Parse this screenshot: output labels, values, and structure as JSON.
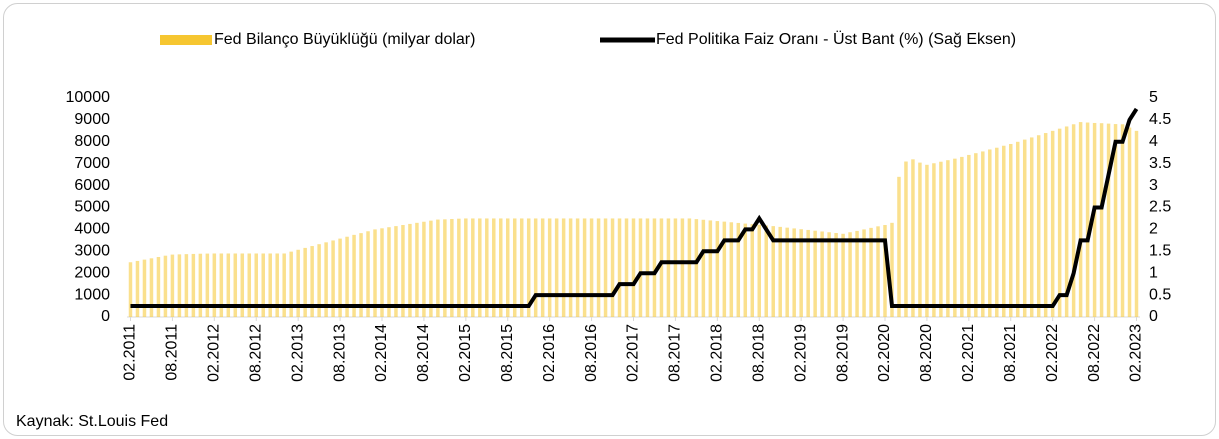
{
  "chart_data": {
    "type": "bar",
    "legend_position": "top",
    "source": "Kaynak: St.Louis Fed",
    "categories": [
      "02.2011",
      null,
      null,
      null,
      null,
      null,
      "08.2011",
      null,
      null,
      null,
      null,
      null,
      "02.2012",
      null,
      null,
      null,
      null,
      null,
      "08.2012",
      null,
      null,
      null,
      null,
      null,
      "02.2013",
      null,
      null,
      null,
      null,
      null,
      "08.2013",
      null,
      null,
      null,
      null,
      null,
      "02.2014",
      null,
      null,
      null,
      null,
      null,
      "08.2014",
      null,
      null,
      null,
      null,
      null,
      "02.2015",
      null,
      null,
      null,
      null,
      null,
      "08.2015",
      null,
      null,
      null,
      null,
      null,
      "02.2016",
      null,
      null,
      null,
      null,
      null,
      "08.2016",
      null,
      null,
      null,
      null,
      null,
      "02.2017",
      null,
      null,
      null,
      null,
      null,
      "08.2017",
      null,
      null,
      null,
      null,
      null,
      "02.2018",
      null,
      null,
      null,
      null,
      null,
      "08.2018",
      null,
      null,
      null,
      null,
      null,
      "02.2019",
      null,
      null,
      null,
      null,
      null,
      "08.2019",
      null,
      null,
      null,
      null,
      null,
      "02.2020",
      null,
      null,
      null,
      null,
      null,
      "08.2020",
      null,
      null,
      null,
      null,
      null,
      "02.2021",
      null,
      null,
      null,
      null,
      null,
      "08.2021",
      null,
      null,
      null,
      null,
      null,
      "02.2022",
      null,
      null,
      null,
      null,
      null,
      "08.2022",
      null,
      null,
      null,
      null,
      null,
      "02.2023"
    ],
    "series": [
      {
        "name": "Fed Bilanço Büyüklüğü (milyar dolar)",
        "type": "bar",
        "color": "#f6c630",
        "values": [
          2500,
          2560,
          2620,
          2680,
          2740,
          2800,
          2850,
          2860,
          2870,
          2880,
          2890,
          2895,
          2900,
          2900,
          2900,
          2900,
          2900,
          2900,
          2900,
          2900,
          2900,
          2900,
          2900,
          2985,
          3070,
          3155,
          3240,
          3325,
          3410,
          3495,
          3580,
          3665,
          3750,
          3830,
          3915,
          4000,
          4050,
          4100,
          4150,
          4200,
          4250,
          4300,
          4350,
          4400,
          4450,
          4460,
          4475,
          4490,
          4500,
          4500,
          4500,
          4500,
          4500,
          4500,
          4500,
          4500,
          4500,
          4500,
          4500,
          4500,
          4500,
          4500,
          4500,
          4500,
          4500,
          4500,
          4500,
          4500,
          4500,
          4500,
          4500,
          4500,
          4500,
          4500,
          4500,
          4500,
          4500,
          4500,
          4500,
          4500,
          4500,
          4470,
          4440,
          4410,
          4380,
          4355,
          4325,
          4295,
          4265,
          4240,
          4210,
          4180,
          4150,
          4115,
          4080,
          4045,
          4010,
          3975,
          3940,
          3905,
          3870,
          3835,
          3800,
          3870,
          3930,
          4000,
          4070,
          4140,
          4200,
          4300,
          6400,
          7100,
          7200,
          7050,
          6950,
          7020,
          7090,
          7160,
          7230,
          7310,
          7400,
          7480,
          7560,
          7650,
          7730,
          7820,
          7900,
          8000,
          8100,
          8200,
          8300,
          8400,
          8500,
          8600,
          8700,
          8800,
          8900,
          8880,
          8860,
          8850,
          8830,
          8810,
          8800,
          8650,
          8500
        ]
      },
      {
        "name": "Fed Politika Faiz Oranı - Üst Bant (%) (Sağ Eksen)",
        "type": "line",
        "axis": "y2",
        "color": "#000000",
        "values": [
          0.25,
          0.25,
          0.25,
          0.25,
          0.25,
          0.25,
          0.25,
          0.25,
          0.25,
          0.25,
          0.25,
          0.25,
          0.25,
          0.25,
          0.25,
          0.25,
          0.25,
          0.25,
          0.25,
          0.25,
          0.25,
          0.25,
          0.25,
          0.25,
          0.25,
          0.25,
          0.25,
          0.25,
          0.25,
          0.25,
          0.25,
          0.25,
          0.25,
          0.25,
          0.25,
          0.25,
          0.25,
          0.25,
          0.25,
          0.25,
          0.25,
          0.25,
          0.25,
          0.25,
          0.25,
          0.25,
          0.25,
          0.25,
          0.25,
          0.25,
          0.25,
          0.25,
          0.25,
          0.25,
          0.25,
          0.25,
          0.25,
          0.25,
          0.5,
          0.5,
          0.5,
          0.5,
          0.5,
          0.5,
          0.5,
          0.5,
          0.5,
          0.5,
          0.5,
          0.5,
          0.75,
          0.75,
          0.75,
          1,
          1,
          1,
          1.25,
          1.25,
          1.25,
          1.25,
          1.25,
          1.25,
          1.5,
          1.5,
          1.5,
          1.75,
          1.75,
          1.75,
          2,
          2,
          2.25,
          2,
          1.75,
          1.75,
          1.75,
          1.75,
          1.75,
          1.75,
          1.75,
          1.75,
          1.75,
          1.75,
          1.75,
          1.75,
          1.75,
          1.75,
          1.75,
          1.75,
          1.75,
          0.25,
          0.25,
          0.25,
          0.25,
          0.25,
          0.25,
          0.25,
          0.25,
          0.25,
          0.25,
          0.25,
          0.25,
          0.25,
          0.25,
          0.25,
          0.25,
          0.25,
          0.25,
          0.25,
          0.25,
          0.25,
          0.25,
          0.25,
          0.25,
          0.5,
          0.5,
          1,
          1.75,
          1.75,
          2.5,
          2.5,
          3.25,
          4,
          4,
          4.5,
          4.75
        ]
      }
    ],
    "ylim": [
      0,
      10000
    ],
    "yticks": [
      0,
      1000,
      2000,
      3000,
      4000,
      5000,
      6000,
      7000,
      8000,
      9000,
      10000
    ],
    "y2lim": [
      0,
      5
    ],
    "y2ticks": [
      0,
      0.5,
      1,
      1.5,
      2,
      2.5,
      3,
      3.5,
      4,
      4.5,
      5
    ],
    "grid": false
  }
}
